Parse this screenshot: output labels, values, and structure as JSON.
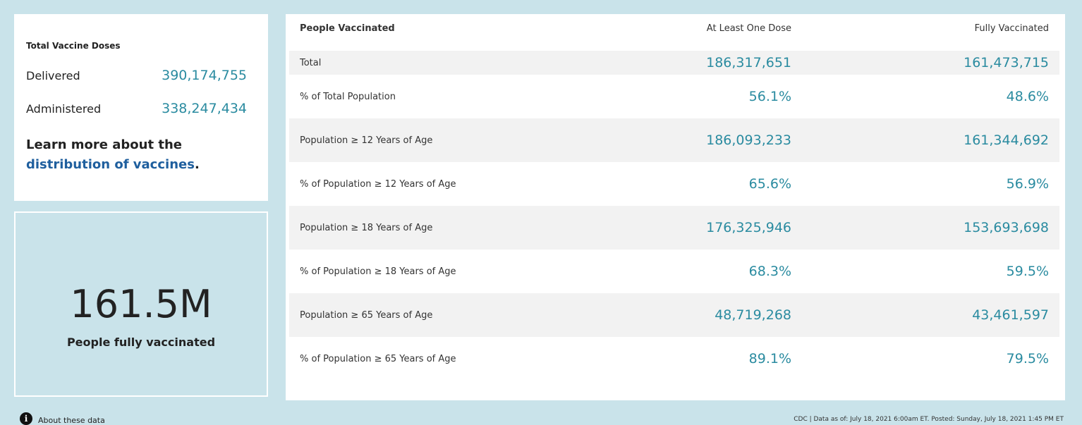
{
  "doses": {
    "title": "Total Vaccine Doses",
    "delivered": {
      "label": "Delivered",
      "value": "390,174,755"
    },
    "administered": {
      "label": "Administered",
      "value": "338,247,434"
    },
    "learn_more": {
      "text": "Learn more about the",
      "link": "distribution of vaccines",
      "end": "."
    }
  },
  "highlight": {
    "value": "161.5M",
    "label": "People fully vaccinated"
  },
  "table": {
    "headers": [
      "People Vaccinated",
      "At Least One Dose",
      "Fully Vaccinated"
    ],
    "rows": [
      [
        "Total",
        "186,317,651",
        "161,473,715"
      ],
      [
        "% of Total Population",
        "56.1%",
        "48.6%"
      ],
      [
        "Population ≥ 12 Years of Age",
        "186,093,233",
        "161,344,692"
      ],
      [
        "% of Population ≥ 12 Years of Age",
        "65.6%",
        "56.9%"
      ],
      [
        "Population ≥ 18 Years of Age",
        "176,325,946",
        "153,693,698"
      ],
      [
        "% of Population ≥ 18 Years of Age",
        "68.3%",
        "59.5%"
      ],
      [
        "Population ≥ 65 Years of Age",
        "48,719,268",
        "43,461,597"
      ],
      [
        "% of Population ≥ 65 Years of Age",
        "89.1%",
        "79.5%"
      ]
    ]
  },
  "footer": {
    "about": "About these data",
    "source": "CDC | Data as of: July 18, 2021 6:00am ET. Posted: Sunday, July 18, 2021 1:45 PM ET"
  }
}
